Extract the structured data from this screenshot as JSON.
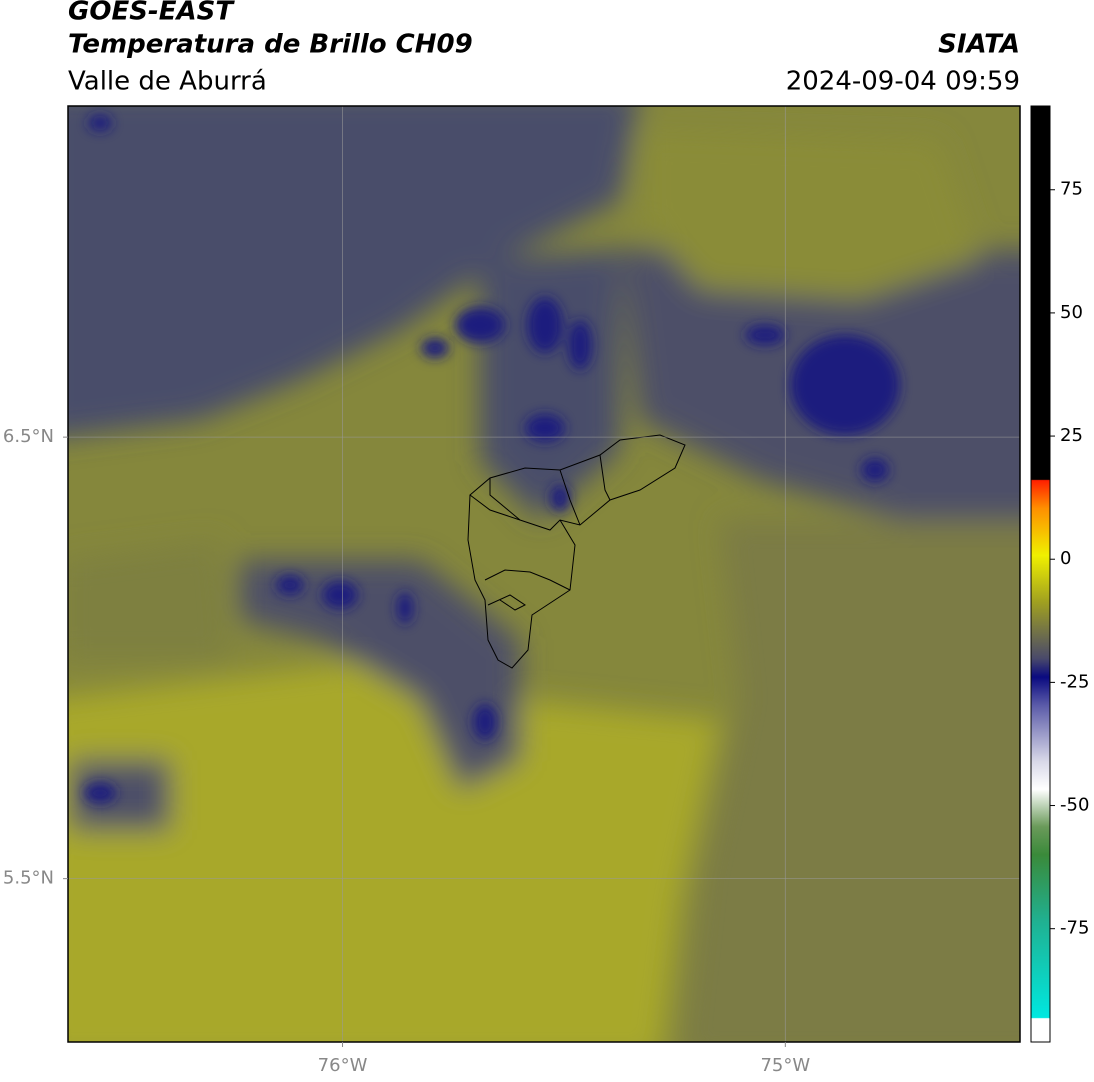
{
  "header": {
    "title": "GOES-EAST",
    "subtitle": "Temperatura de Brillo CH09",
    "left_label": "Valle de Aburrá",
    "right_title": "SIATA",
    "timestamp": "2024-09-04 09:59"
  },
  "map": {
    "xlim": [
      -76.62,
      -74.47
    ],
    "ylim": [
      5.13,
      7.25
    ],
    "xticks": [
      {
        "value": -76,
        "label": "76°W"
      },
      {
        "value": -75,
        "label": "75°W"
      }
    ],
    "yticks": [
      {
        "value": 5.5,
        "label": "5.5°N"
      },
      {
        "value": 6.5,
        "label": "6.5°N"
      }
    ],
    "grid": true
  },
  "colorbar": {
    "clim": [
      -98,
      92
    ],
    "ticks": [
      75,
      50,
      25,
      0,
      -25,
      -50,
      -75
    ]
  }
}
